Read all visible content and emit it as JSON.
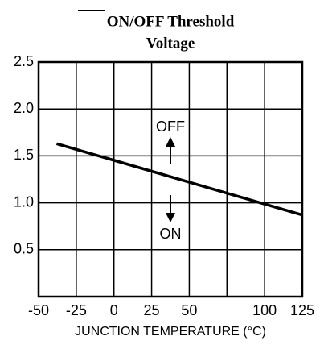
{
  "chart_data": {
    "type": "line",
    "title": [
      "ON/OFF Threshold",
      "Voltage"
    ],
    "x_label": "JUNCTION TEMPERATURE (°C)",
    "x": [
      -38,
      125
    ],
    "series": [
      {
        "name": "Threshold",
        "color": "#000000",
        "values": [
          1.63,
          0.87
        ]
      }
    ],
    "xlim": [
      -50,
      125
    ],
    "xticks": [
      -50,
      -25,
      0,
      25,
      50,
      100,
      125
    ],
    "xgrid": [
      -50,
      -25,
      0,
      25,
      50,
      75,
      100,
      125
    ],
    "ylim": [
      0,
      2.5
    ],
    "yticks": [
      {
        "value": 0.5,
        "label": "0.5"
      },
      {
        "value": 1,
        "label": "1.0"
      },
      {
        "value": 1.5,
        "label": "1.5"
      },
      {
        "value": 2,
        "label": "2.0"
      },
      {
        "value": 2.5,
        "label": "2.5"
      }
    ],
    "ygrid": [
      0,
      0.5,
      1,
      1.5,
      2,
      2.5
    ],
    "grid": true,
    "annotations": [
      "OFF",
      "ON"
    ]
  }
}
